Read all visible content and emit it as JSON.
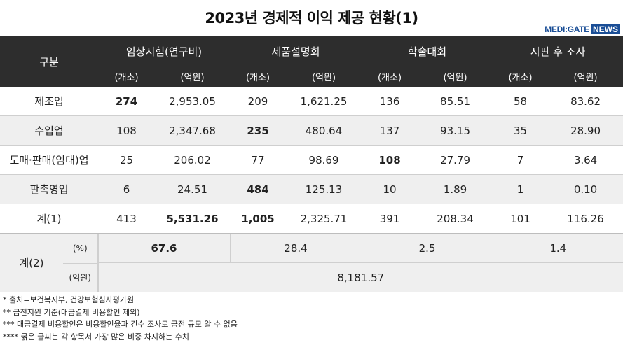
{
  "title": "2023년 경제적 이익 제공 현황(1)",
  "logo": {
    "medi": "MEDI:GATE",
    "news": "NEWS"
  },
  "header": {
    "category": "구분",
    "groups": [
      "임상시험(연구비)",
      "제품설명회",
      "학술대회",
      "시판 후 조사"
    ],
    "units": [
      "(개소)",
      "(억원)",
      "(개소)",
      "(억원)",
      "(개소)",
      "(억원)",
      "(개소)",
      "(억원)"
    ]
  },
  "rows": [
    {
      "label": "제조업",
      "values": [
        "274",
        "2,953.05",
        "209",
        "1,621.25",
        "136",
        "85.51",
        "58",
        "83.62"
      ]
    },
    {
      "label": "수입업",
      "values": [
        "108",
        "2,347.68",
        "235",
        "480.64",
        "137",
        "93.15",
        "35",
        "28.90"
      ]
    },
    {
      "label": "도매·판매(임대)업",
      "values": [
        "25",
        "206.02",
        "77",
        "98.69",
        "108",
        "27.79",
        "7",
        "3.64"
      ]
    },
    {
      "label": "판촉영업",
      "values": [
        "6",
        "24.51",
        "484",
        "125.13",
        "10",
        "1.89",
        "1",
        "0.10"
      ]
    },
    {
      "label": "계(1)",
      "values": [
        "413",
        "5,531.26",
        "1,005",
        "2,325.71",
        "391",
        "208.34",
        "101",
        "116.26"
      ]
    }
  ],
  "total2": {
    "label": "계(2)",
    "pct_unit": "(%)",
    "pct": [
      "67.6",
      "28.4",
      "2.5",
      "1.4"
    ],
    "won_unit": "(억원)",
    "won": "8,181.57"
  },
  "notes": [
    "* 출처=보건복지부, 건강보험심사평가원",
    "** 금전지원 기준(대금결제 비용할인 제외)",
    "*** 대금결제 비용할인은 비용할인율과 건수 조사로 금전 규모 알 수 없음",
    "**** 굵은 글씨는 각 항목서 가장 많은 비중 차지하는 수치"
  ]
}
